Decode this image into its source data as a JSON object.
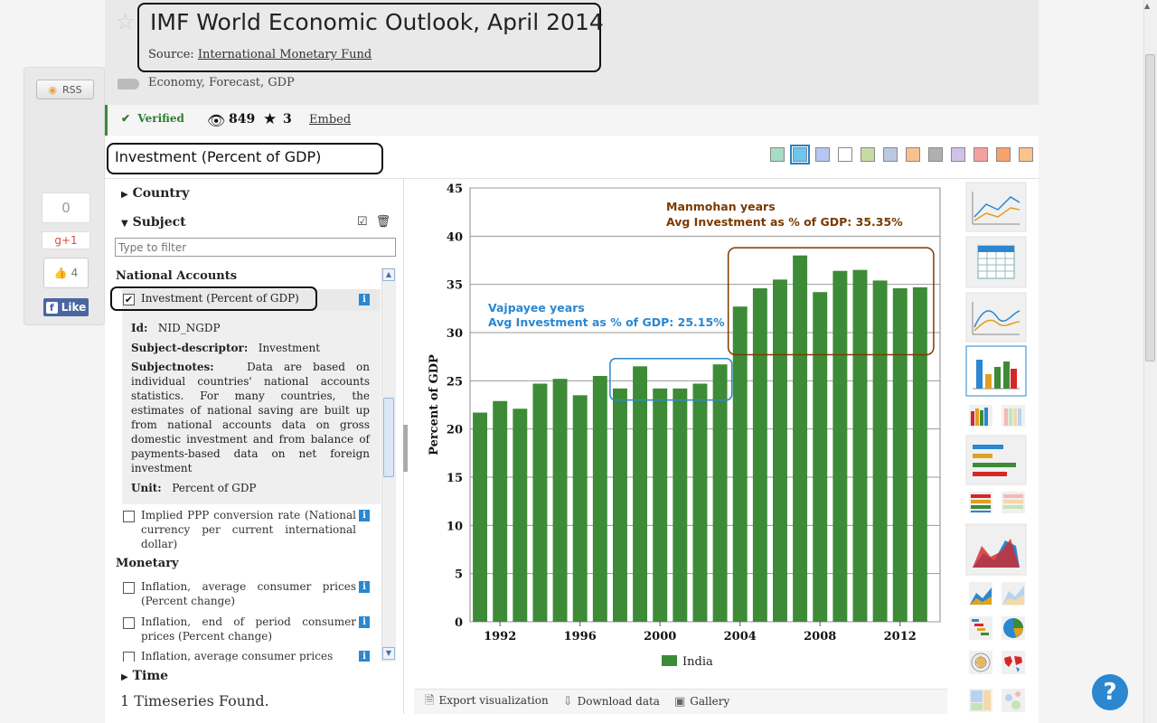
{
  "social": {
    "rss_label": "RSS",
    "share_count": "0",
    "gplus_label": "g+1",
    "like_count": "4",
    "fb_like_label": "Like"
  },
  "header": {
    "title": "IMF World Economic Outlook, April 2014",
    "source_prefix": "Source: ",
    "source_link": "International Monetary Fund",
    "tags": "Economy, Forecast, GDP"
  },
  "infobar": {
    "verified": "Verified",
    "views": "849",
    "favorites": "3",
    "embed": "Embed"
  },
  "indicator": {
    "title": "Investment (Percent of GDP)"
  },
  "palette": [
    "#a8dcc6",
    "#6ec6ef",
    "#b7c6f2",
    "#ffffff",
    "#c6dba2",
    "#b9c9e2",
    "#f7c18f",
    "#b0b0b0",
    "#d0c2e6",
    "#f4a0a0",
    "#f7a16b",
    "#f9c28e"
  ],
  "filters": {
    "country_label": "Country",
    "subject_label": "Subject",
    "filter_placeholder": "Type to filter",
    "national_accounts": "National Accounts",
    "selected_item": "Investment (Percent of GDP)",
    "details": {
      "id_label": "Id:",
      "id_value": "NID_NGDP",
      "descriptor_label": "Subject-descriptor:",
      "descriptor_value": "Investment",
      "notes_label": "Subjectnotes:",
      "notes_value": "Data are based on individual countries' national accounts statistics. For many countries, the estimates of national saving are built up from national accounts data on gross domestic investment and from balance of payments-based data on net foreign investment",
      "unit_label": "Unit:",
      "unit_value": "Percent of GDP"
    },
    "ppp_item": "Implied PPP conversion rate (National currency per current international dollar)",
    "monetary": "Monetary",
    "monetary_items": [
      "Inflation, average consumer prices (Percent change)",
      "Inflation, end of period consumer prices (Percent change)",
      "Inflation, average consumer prices"
    ],
    "time_label": "Time",
    "timeseries_found": "1 Timeseries Found."
  },
  "chart_footer": {
    "export": "Export visualization",
    "download": "Download data",
    "gallery": "Gallery"
  },
  "chart_data": {
    "type": "bar",
    "ylabel": "Percent of GDP",
    "ylim": [
      0,
      45
    ],
    "yticks": [
      0,
      5,
      10,
      15,
      20,
      25,
      30,
      35,
      40,
      45
    ],
    "xticks": [
      1992,
      1996,
      2000,
      2004,
      2008,
      2012
    ],
    "categories": [
      1991,
      1992,
      1993,
      1994,
      1995,
      1996,
      1997,
      1998,
      1999,
      2000,
      2001,
      2002,
      2003,
      2004,
      2005,
      2006,
      2007,
      2008,
      2009,
      2010,
      2011,
      2012,
      2013
    ],
    "series": [
      {
        "name": "India",
        "color": "#3d8b37",
        "values": [
          21.7,
          22.9,
          22.1,
          24.7,
          25.2,
          23.5,
          25.5,
          24.2,
          26.5,
          24.2,
          24.2,
          24.7,
          26.7,
          32.7,
          34.6,
          35.5,
          38.0,
          34.2,
          36.4,
          36.5,
          35.4,
          34.6,
          34.7
        ]
      }
    ],
    "annotations": [
      {
        "lines": [
          "Manmohan years",
          "Avg Investment as % of GDP: 35.35%"
        ],
        "color": "#7a3a00"
      },
      {
        "lines": [
          "Vajpayee years",
          "Avg Investment as % of GDP: 25.15%"
        ],
        "color": "#2a87d0"
      }
    ],
    "legend_position": "bottom",
    "grid": true
  }
}
